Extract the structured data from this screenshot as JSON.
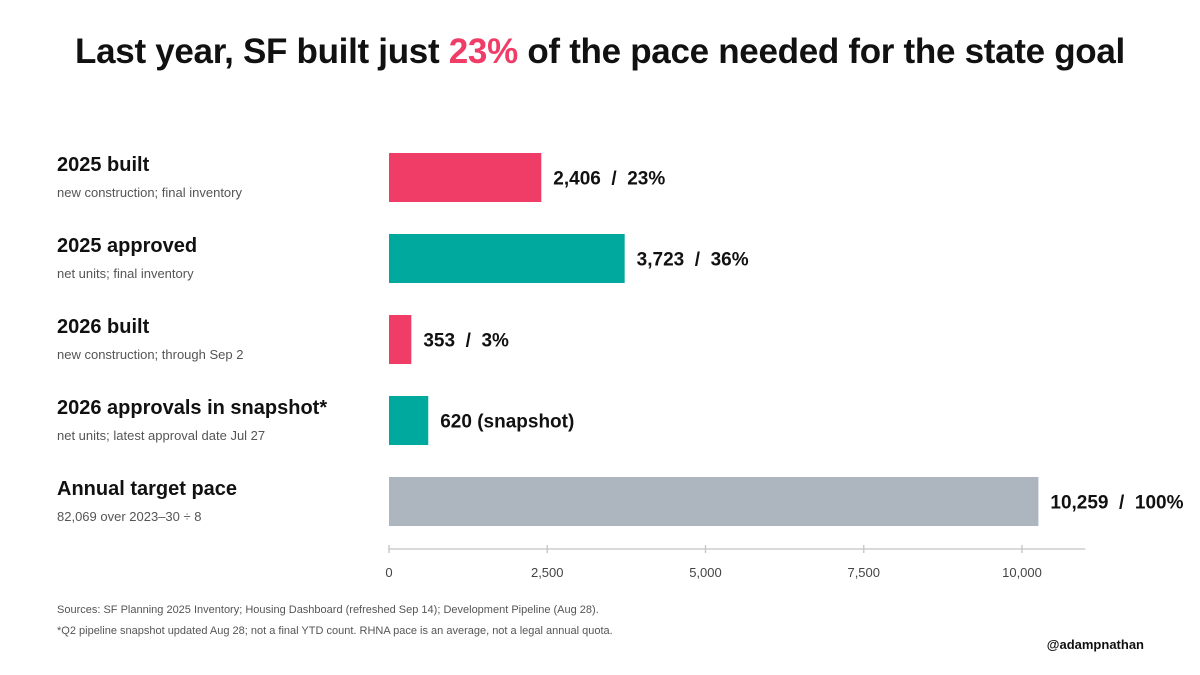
{
  "title": {
    "before": "Last year, SF built just ",
    "highlight": "23%",
    "after": " of the pace needed for the state goal"
  },
  "colors": {
    "built": "#ef3d67",
    "approved": "#00a99d",
    "target": "#adb5bf",
    "highlight": "#ef3d67"
  },
  "chart_data": {
    "type": "bar",
    "orientation": "horizontal",
    "categories": [
      "2025 built",
      "2025 approved",
      "2026 built",
      "2026 approvals in snapshot*",
      "Annual target pace"
    ],
    "subtitles": [
      "new construction; final inventory",
      "net units; final inventory",
      "new construction; through Sep 2",
      "net units; latest approval date Jul 27",
      "82,069 over 2023–30 ÷ 8"
    ],
    "values": [
      2406,
      3723,
      353,
      620,
      10259
    ],
    "value_labels": [
      "2,406  /  23%",
      "3,723  /  36%",
      "353  /  3%",
      "620 (snapshot)",
      "10,259  /  100%"
    ],
    "bar_colors": [
      "#ef3d67",
      "#00a99d",
      "#ef3d67",
      "#00a99d",
      "#adb5bf"
    ],
    "xlim": [
      0,
      11000
    ],
    "x_ticks": [
      0,
      2500,
      5000,
      7500,
      10000
    ],
    "x_tick_labels": [
      "0",
      "2,500",
      "5,000",
      "7,500",
      "10,000"
    ],
    "grid": false
  },
  "footnotes": {
    "sources": "Sources: SF Planning 2025 Inventory; Housing Dashboard (refreshed Sep 14); Development Pipeline (Aug 28).",
    "note": "*Q2 pipeline snapshot updated Aug 28; not a final YTD count. RHNA pace is an average, not a legal annual quota."
  },
  "handle": "@adampnathan"
}
